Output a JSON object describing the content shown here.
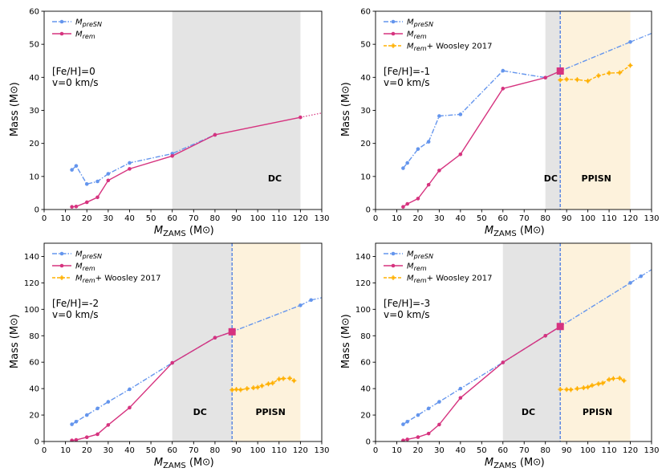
{
  "colors": {
    "presn": "#6495ed",
    "rem": "#d6337f",
    "woosley": "#ffb000",
    "dc_fill": "#e4e4e4",
    "ppisn_fill": "#fdf2dc",
    "edge_line": "#4a7be0"
  },
  "chart_data": [
    {
      "type": "line",
      "metallicity_label": "[Fe/H]=0",
      "rotation_label": "v=0 km/s",
      "xlabel_main": "M",
      "xlabel_sub": "ZAMS",
      "xlabel_unit": "(M",
      "ylabel": "Mass (M",
      "xlim": [
        0,
        130
      ],
      "ylim": [
        0,
        60
      ],
      "xticks": [
        0,
        10,
        20,
        30,
        40,
        50,
        60,
        70,
        80,
        90,
        100,
        110,
        120,
        130
      ],
      "yticks": [
        0,
        10,
        20,
        30,
        40,
        50,
        60
      ],
      "regions": [
        {
          "name": "DC",
          "x0": 60,
          "x1": 120,
          "label_x": 108,
          "label_y": 8.5
        }
      ],
      "edge_x": null,
      "edge_marker_y": null,
      "legend": [
        {
          "key": "presn",
          "main": "M",
          "sub": "preSN"
        },
        {
          "key": "rem",
          "main": "M",
          "sub": "rem"
        }
      ],
      "series": [
        {
          "key": "presn",
          "name": "M_preSN",
          "x": [
            13,
            15,
            20,
            25,
            30,
            40,
            60,
            80
          ],
          "y": [
            12,
            13.2,
            7.7,
            8.5,
            10.8,
            14.1,
            16.9,
            22.6
          ]
        },
        {
          "key": "rem",
          "name": "M_rem",
          "x": [
            13,
            15,
            20,
            25,
            30,
            40,
            60,
            80,
            120
          ],
          "y": [
            0.8,
            0.9,
            2.2,
            3.7,
            8.8,
            12.3,
            16.2,
            22.6,
            27.9
          ]
        }
      ],
      "extension": {
        "key": "rem",
        "x": [
          120,
          130
        ],
        "y": [
          27.9,
          29.2
        ]
      }
    },
    {
      "type": "line",
      "metallicity_label": "[Fe/H]=-1",
      "rotation_label": "v=0 km/s",
      "xlabel_main": "M",
      "xlabel_sub": "ZAMS",
      "xlabel_unit": "(M",
      "ylabel": "Mass (M",
      "xlim": [
        0,
        130
      ],
      "ylim": [
        0,
        60
      ],
      "xticks": [
        0,
        10,
        20,
        30,
        40,
        50,
        60,
        70,
        80,
        90,
        100,
        110,
        120,
        130
      ],
      "yticks": [
        0,
        10,
        20,
        30,
        40,
        50,
        60
      ],
      "regions": [
        {
          "name": "DC",
          "x0": 80,
          "x1": 87,
          "label_x": 82.5,
          "label_y": 8.5
        },
        {
          "name": "PPISN",
          "x0": 87,
          "x1": 120,
          "label_x": 104,
          "label_y": 8.5
        }
      ],
      "edge_x": 87,
      "edge_marker_y": 41.9,
      "legend": [
        {
          "key": "presn",
          "main": "M",
          "sub": "preSN"
        },
        {
          "key": "rem",
          "main": "M",
          "sub": "rem"
        },
        {
          "key": "woosley",
          "main": "M",
          "sub": "rem",
          "suffix": "+ Woosley 2017"
        }
      ],
      "series": [
        {
          "key": "presn",
          "name": "M_preSN",
          "x": [
            13,
            15,
            20,
            25,
            30,
            40,
            60,
            80,
            87,
            120
          ],
          "y": [
            12.5,
            14.1,
            18.3,
            20.5,
            28.3,
            28.8,
            42,
            39.9,
            41.9,
            50.7
          ]
        },
        {
          "key": "rem",
          "name": "M_rem",
          "x": [
            13,
            15,
            20,
            25,
            30,
            40,
            60,
            80,
            87
          ],
          "y": [
            0.8,
            1.7,
            3.3,
            7.5,
            11.8,
            16.7,
            36.6,
            39.9,
            41.9
          ]
        },
        {
          "key": "woosley",
          "name": "M_rem + Woosley 2017",
          "x": [
            87,
            90,
            95,
            100,
            105,
            110,
            115,
            120
          ],
          "y": [
            39.2,
            39.4,
            39.3,
            38.9,
            40.5,
            41.3,
            41.4,
            43.6
          ]
        }
      ],
      "extension": {
        "key": "presn",
        "x": [
          120,
          130
        ],
        "y": [
          50.7,
          53.3
        ]
      }
    },
    {
      "type": "line",
      "metallicity_label": "[Fe/H]=-2",
      "rotation_label": "v=0 km/s",
      "xlabel_main": "M",
      "xlabel_sub": "ZAMS",
      "xlabel_unit": "(M",
      "ylabel": "Mass (M",
      "xlim": [
        0,
        130
      ],
      "ylim": [
        0,
        150
      ],
      "xticks": [
        0,
        10,
        20,
        30,
        40,
        50,
        60,
        70,
        80,
        90,
        100,
        110,
        120,
        130
      ],
      "yticks": [
        0,
        20,
        40,
        60,
        80,
        100,
        120,
        140
      ],
      "regions": [
        {
          "name": "DC",
          "x0": 60,
          "x1": 88,
          "label_x": 73,
          "label_y": 20
        },
        {
          "name": "PPISN",
          "x0": 88,
          "x1": 120,
          "label_x": 106,
          "label_y": 20
        }
      ],
      "edge_x": 88,
      "edge_marker_y": 83,
      "legend": [
        {
          "key": "presn",
          "main": "M",
          "sub": "preSN"
        },
        {
          "key": "rem",
          "main": "M",
          "sub": "rem"
        },
        {
          "key": "woosley",
          "main": "M",
          "sub": "rem",
          "suffix": "+ Woosley 2017"
        }
      ],
      "series": [
        {
          "key": "presn",
          "name": "M_preSN",
          "x": [
            13,
            15,
            20,
            25,
            30,
            40,
            60,
            80,
            88,
            120,
            125
          ],
          "y": [
            13,
            15,
            20,
            25,
            30,
            39.5,
            59.5,
            78.5,
            83,
            103,
            107
          ]
        },
        {
          "key": "rem",
          "name": "M_rem",
          "x": [
            13,
            15,
            20,
            25,
            30,
            40,
            60,
            80,
            88
          ],
          "y": [
            0.8,
            1.2,
            3.2,
            5.5,
            12.5,
            25.6,
            59.5,
            78.5,
            83
          ]
        },
        {
          "key": "woosley",
          "name": "M_rem + Woosley 2017",
          "x": [
            88,
            90,
            92,
            95,
            98,
            100,
            102,
            105,
            107,
            110,
            112,
            115,
            117
          ],
          "y": [
            39,
            39.4,
            39.1,
            40,
            40.6,
            41,
            42.1,
            43.6,
            44.2,
            47.2,
            47.6,
            47.8,
            46
          ]
        }
      ],
      "extension": {
        "key": "presn",
        "x": [
          125,
          130
        ],
        "y": [
          107,
          108.8
        ]
      }
    },
    {
      "type": "line",
      "metallicity_label": "[Fe/H]=-3",
      "rotation_label": "v=0 km/s",
      "xlabel_main": "M",
      "xlabel_sub": "ZAMS",
      "xlabel_unit": "(M",
      "ylabel": "Mass (M",
      "xlim": [
        0,
        130
      ],
      "ylim": [
        0,
        150
      ],
      "xticks": [
        0,
        10,
        20,
        30,
        40,
        50,
        60,
        70,
        80,
        90,
        100,
        110,
        120,
        130
      ],
      "yticks": [
        0,
        20,
        40,
        60,
        80,
        100,
        120,
        140
      ],
      "regions": [
        {
          "name": "DC",
          "x0": 60,
          "x1": 87,
          "label_x": 72,
          "label_y": 20
        },
        {
          "name": "PPISN",
          "x0": 87,
          "x1": 120,
          "label_x": 104.5,
          "label_y": 20
        }
      ],
      "edge_x": 87,
      "edge_marker_y": 87,
      "legend": [
        {
          "key": "presn",
          "main": "M",
          "sub": "preSN"
        },
        {
          "key": "rem",
          "main": "M",
          "sub": "rem"
        },
        {
          "key": "woosley",
          "main": "M",
          "sub": "rem",
          "suffix": "+ Woosley 2017"
        }
      ],
      "series": [
        {
          "key": "presn",
          "name": "M_preSN",
          "x": [
            13,
            15,
            20,
            25,
            30,
            40,
            60,
            80,
            87,
            120,
            125
          ],
          "y": [
            13,
            15,
            20,
            25,
            30,
            40,
            59.8,
            80,
            87,
            120,
            125
          ]
        },
        {
          "key": "rem",
          "name": "M_rem",
          "x": [
            13,
            15,
            20,
            25,
            30,
            40,
            60,
            80,
            87
          ],
          "y": [
            0.8,
            1.6,
            3.3,
            6,
            12.8,
            33,
            59.8,
            80,
            87
          ]
        },
        {
          "key": "woosley",
          "name": "M_rem + Woosley 2017",
          "x": [
            87,
            90,
            92,
            95,
            98,
            100,
            102,
            105,
            107,
            110,
            112,
            115,
            117
          ],
          "y": [
            39.4,
            39.3,
            39.2,
            40,
            40.6,
            41.1,
            42.4,
            43.6,
            44.2,
            46.9,
            47.6,
            47.9,
            46
          ]
        }
      ],
      "extension": {
        "key": "presn",
        "x": [
          125,
          130
        ],
        "y": [
          125,
          130
        ]
      }
    }
  ]
}
